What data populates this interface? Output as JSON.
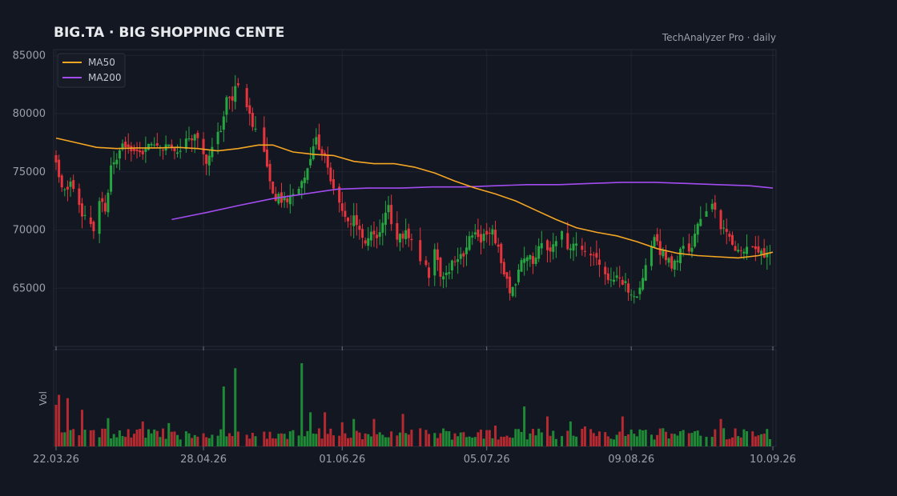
{
  "header": {
    "title": "BIG.TA  ·  BIG SHOPPING CENTE",
    "source": "TechAnalyzer Pro · daily"
  },
  "colors": {
    "background": "#131722",
    "up": "#26a641",
    "down": "#e5343b",
    "ma50": "#f5a623",
    "ma200": "#a24cf0",
    "grid": "#1f2430"
  },
  "chart_data": {
    "type": "candlestick",
    "title": "BIG.TA  ·  BIG SHOPPING CENTE",
    "x_start": "22.03.26",
    "x_end": "10.09.26",
    "n_sessions": 248,
    "price_axis": {
      "range": [
        60000,
        85500
      ],
      "ticks": [
        85000,
        80000,
        75000,
        70000,
        65000
      ]
    },
    "x_ticks": [
      {
        "label": "22.03.26",
        "index": 0
      },
      {
        "label": "28.04.26",
        "index": 51
      },
      {
        "label": "01.06.26",
        "index": 99
      },
      {
        "label": "05.07.26",
        "index": 149
      },
      {
        "label": "09.08.26",
        "index": 199
      },
      {
        "label": "10.09.26",
        "index": 248
      }
    ],
    "volume_axis": {
      "label": "Vol"
    },
    "legend": {
      "position": "top-left",
      "entries": [
        "MA50",
        "MA200"
      ]
    },
    "close_path": [
      [
        0,
        75800
      ],
      [
        2,
        73700
      ],
      [
        6,
        73900
      ],
      [
        9,
        71500
      ],
      [
        11,
        70600
      ],
      [
        13,
        69800
      ],
      [
        15,
        72500
      ],
      [
        17,
        71500
      ],
      [
        19,
        75200
      ],
      [
        21,
        76200
      ],
      [
        23,
        77200
      ],
      [
        26,
        77200
      ],
      [
        29,
        76800
      ],
      [
        31,
        77000
      ],
      [
        34,
        77200
      ],
      [
        37,
        77300
      ],
      [
        40,
        77200
      ],
      [
        43,
        76800
      ],
      [
        46,
        78100
      ],
      [
        49,
        77700
      ],
      [
        52,
        76000
      ],
      [
        55,
        77500
      ],
      [
        57,
        78800
      ],
      [
        59,
        81200
      ],
      [
        61,
        81400
      ],
      [
        63,
        82800
      ],
      [
        65,
        81000
      ],
      [
        67,
        80000
      ],
      [
        69,
        78600
      ],
      [
        71,
        77200
      ],
      [
        73,
        75500
      ],
      [
        75,
        73200
      ],
      [
        77,
        72700
      ],
      [
        80,
        72500
      ],
      [
        84,
        73300
      ],
      [
        86,
        74400
      ],
      [
        88,
        76100
      ],
      [
        90,
        77600
      ],
      [
        92,
        76800
      ],
      [
        94,
        75300
      ],
      [
        97,
        73100
      ],
      [
        99,
        72000
      ],
      [
        101,
        70500
      ],
      [
        103,
        71000
      ],
      [
        105,
        70000
      ],
      [
        107,
        68900
      ],
      [
        109,
        69800
      ],
      [
        111,
        68900
      ],
      [
        113,
        70200
      ],
      [
        115,
        72000
      ],
      [
        117,
        69000
      ],
      [
        119,
        69300
      ],
      [
        121,
        69900
      ],
      [
        123,
        68800
      ],
      [
        125,
        67600
      ],
      [
        127,
        67200
      ],
      [
        129,
        66300
      ],
      [
        131,
        68300
      ],
      [
        133,
        66200
      ],
      [
        135,
        66000
      ],
      [
        137,
        67300
      ],
      [
        139,
        67900
      ],
      [
        141,
        67800
      ],
      [
        143,
        69500
      ],
      [
        145,
        69800
      ],
      [
        147,
        69300
      ],
      [
        149,
        69500
      ],
      [
        151,
        70200
      ],
      [
        153,
        68400
      ],
      [
        155,
        66600
      ],
      [
        157,
        64500
      ],
      [
        159,
        65200
      ],
      [
        161,
        67100
      ],
      [
        163,
        68000
      ],
      [
        165,
        67000
      ],
      [
        167,
        68800
      ],
      [
        169,
        69000
      ],
      [
        171,
        68400
      ],
      [
        173,
        69300
      ],
      [
        175,
        69800
      ],
      [
        177,
        68800
      ],
      [
        179,
        68600
      ],
      [
        181,
        68800
      ],
      [
        183,
        68000
      ],
      [
        185,
        67600
      ],
      [
        187,
        67300
      ],
      [
        189,
        66400
      ],
      [
        191,
        65900
      ],
      [
        193,
        65900
      ],
      [
        195,
        65500
      ],
      [
        197,
        65500
      ],
      [
        199,
        64400
      ],
      [
        201,
        64700
      ],
      [
        203,
        65500
      ],
      [
        205,
        68000
      ],
      [
        207,
        69000
      ],
      [
        209,
        68300
      ],
      [
        211,
        67500
      ],
      [
        213,
        67100
      ],
      [
        215,
        67500
      ],
      [
        217,
        68500
      ],
      [
        219,
        68000
      ],
      [
        221,
        69800
      ],
      [
        223,
        70500
      ],
      [
        225,
        71500
      ],
      [
        227,
        72000
      ],
      [
        229,
        71100
      ],
      [
        231,
        69900
      ],
      [
        233,
        69100
      ],
      [
        235,
        68200
      ],
      [
        237,
        68000
      ],
      [
        239,
        68600
      ],
      [
        241,
        68700
      ],
      [
        243,
        68200
      ],
      [
        245,
        67600
      ],
      [
        247,
        68000
      ]
    ],
    "ma50": [
      [
        0,
        77900
      ],
      [
        7,
        77500
      ],
      [
        14,
        77100
      ],
      [
        21,
        77000
      ],
      [
        28,
        77050
      ],
      [
        35,
        77050
      ],
      [
        42,
        77100
      ],
      [
        49,
        77000
      ],
      [
        56,
        76800
      ],
      [
        63,
        77000
      ],
      [
        70,
        77300
      ],
      [
        75,
        77300
      ],
      [
        82,
        76700
      ],
      [
        89,
        76500
      ],
      [
        96,
        76400
      ],
      [
        103,
        75900
      ],
      [
        110,
        75700
      ],
      [
        117,
        75700
      ],
      [
        124,
        75400
      ],
      [
        131,
        74900
      ],
      [
        138,
        74200
      ],
      [
        145,
        73600
      ],
      [
        152,
        73100
      ],
      [
        159,
        72500
      ],
      [
        166,
        71700
      ],
      [
        173,
        70900
      ],
      [
        180,
        70200
      ],
      [
        187,
        69800
      ],
      [
        194,
        69500
      ],
      [
        201,
        69000
      ],
      [
        208,
        68400
      ],
      [
        215,
        68000
      ],
      [
        222,
        67800
      ],
      [
        229,
        67700
      ],
      [
        236,
        67600
      ],
      [
        243,
        67800
      ],
      [
        248,
        68100
      ]
    ],
    "ma200": [
      [
        40,
        70900
      ],
      [
        52,
        71500
      ],
      [
        63,
        72100
      ],
      [
        75,
        72700
      ],
      [
        86,
        73100
      ],
      [
        97,
        73500
      ],
      [
        108,
        73600
      ],
      [
        119,
        73600
      ],
      [
        130,
        73700
      ],
      [
        141,
        73700
      ],
      [
        152,
        73800
      ],
      [
        163,
        73900
      ],
      [
        174,
        73900
      ],
      [
        185,
        74000
      ],
      [
        196,
        74100
      ],
      [
        207,
        74100
      ],
      [
        218,
        74000
      ],
      [
        229,
        73900
      ],
      [
        240,
        73800
      ],
      [
        248,
        73600
      ]
    ],
    "volume_spikes": [
      [
        0,
        50
      ],
      [
        1,
        62
      ],
      [
        4,
        58
      ],
      [
        7,
        52
      ],
      [
        9,
        44
      ],
      [
        18,
        34
      ],
      [
        30,
        30
      ],
      [
        39,
        28
      ],
      [
        58,
        72
      ],
      [
        62,
        94
      ],
      [
        85,
        100
      ],
      [
        88,
        41
      ],
      [
        93,
        41
      ],
      [
        99,
        29
      ],
      [
        103,
        33
      ],
      [
        110,
        33
      ],
      [
        117,
        46
      ],
      [
        120,
        39
      ],
      [
        130,
        28
      ],
      [
        152,
        25
      ],
      [
        162,
        48
      ],
      [
        170,
        36
      ],
      [
        178,
        30
      ],
      [
        183,
        24
      ],
      [
        196,
        36
      ],
      [
        218,
        25
      ],
      [
        230,
        33
      ]
    ]
  }
}
